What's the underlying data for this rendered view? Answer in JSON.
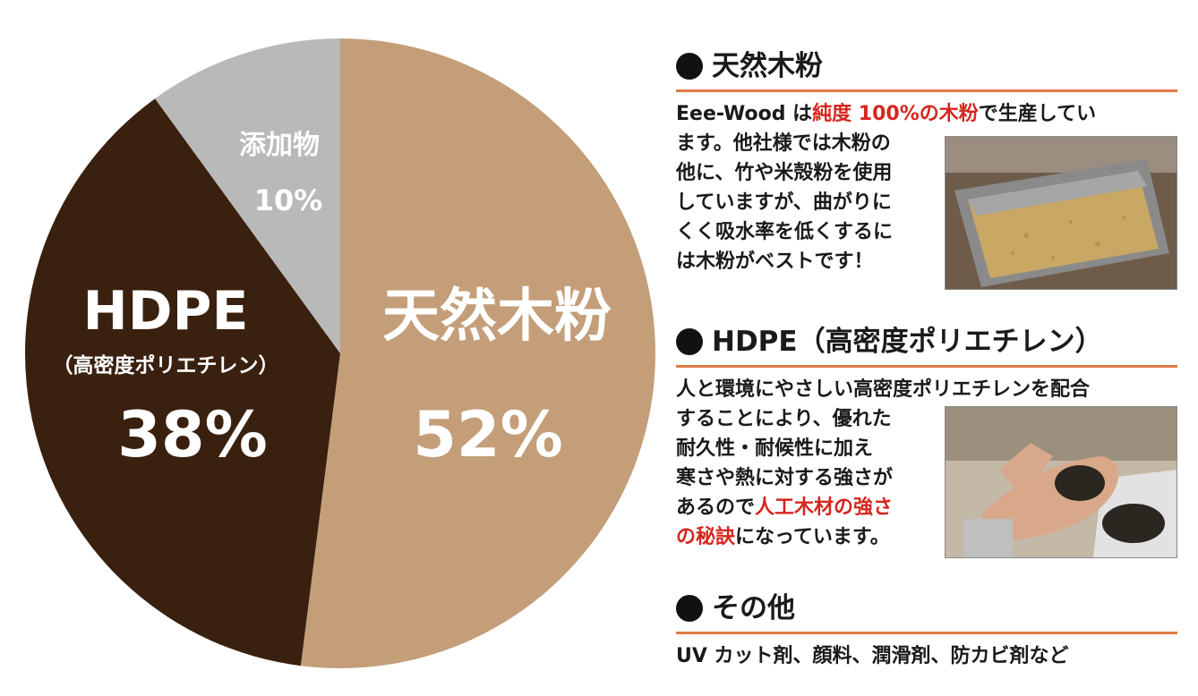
{
  "chart_data": {
    "type": "pie",
    "slices": [
      {
        "name": "天然木粉",
        "name_sub": "",
        "value": 52,
        "value_label": "52%",
        "color": "#c39e78"
      },
      {
        "name": "HDPE",
        "name_sub": "（高密度ポリエチレン）",
        "value": 38,
        "value_label": "38%",
        "color": "#3a200f"
      },
      {
        "name": "添加物",
        "name_sub": "",
        "value": 10,
        "value_label": "10%",
        "color": "#b9b9b9"
      }
    ]
  },
  "sections": {
    "wood": {
      "title": "天然木粉",
      "line1_a": "Eee-Wood は",
      "line1_red": "純度 100%の木粉",
      "line1_b": "で生産してい",
      "lines": [
        "ます。他社様では木粉の",
        "他に、竹や米殻粉を使用",
        "していますが、曲がりに",
        "くく吸水率を低くするに",
        "は木粉がベストです！"
      ]
    },
    "hdpe": {
      "title": "HDPE（高密度ポリエチレン）",
      "line1": "人と環境にやさしい高密度ポリエチレンを配合",
      "lines": [
        "することにより、優れた",
        "耐久性・耐候性に加え",
        "寒さや熱に対する強さが"
      ],
      "line5_a": "あるので",
      "line5_red": "人工木材の強さ",
      "line6_red": "の秘訣",
      "line6_b": "になっています。"
    },
    "other": {
      "title": "その他",
      "text": "UV カット剤、顔料、潤滑剤、防カビ剤など"
    }
  }
}
